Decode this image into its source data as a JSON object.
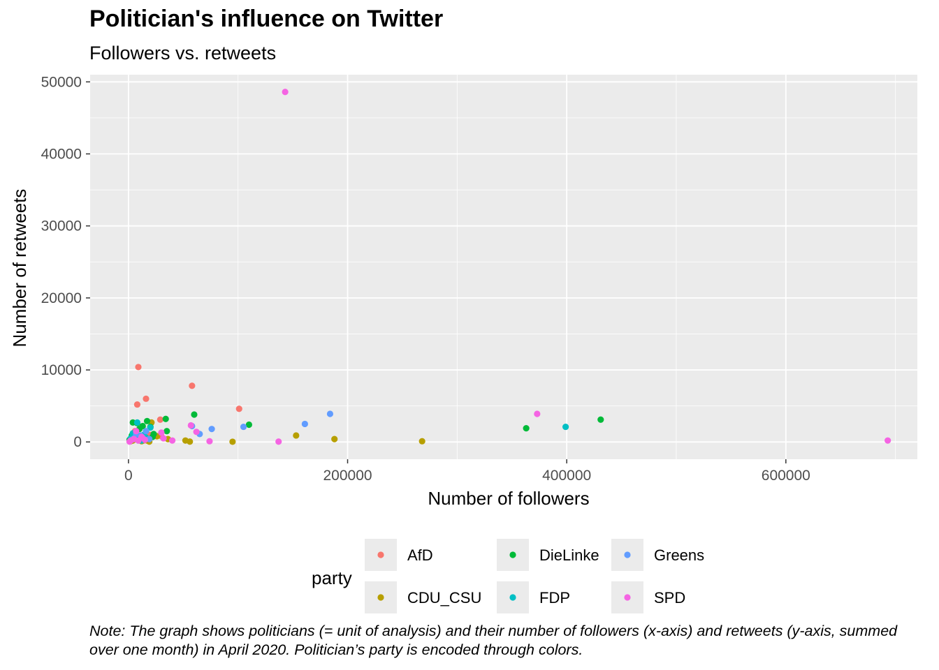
{
  "chart_data": {
    "type": "scatter",
    "title": "Politician's influence on Twitter",
    "subtitle": "Followers vs. retweets",
    "xlabel": "Number of followers",
    "ylabel": "Number of retweets",
    "xlim": [
      -35000,
      720000
    ],
    "ylim": [
      -2400,
      51000
    ],
    "xticks": [
      0,
      200000,
      400000,
      600000
    ],
    "yticks": [
      0,
      10000,
      20000,
      30000,
      40000,
      50000
    ],
    "grid": true,
    "legend": {
      "title": "party",
      "position": "bottom"
    },
    "series": [
      {
        "name": "AfD",
        "color": "#F8766D",
        "points": [
          [
            1000,
            100
          ],
          [
            3000,
            300
          ],
          [
            5000,
            800
          ],
          [
            6000,
            1500
          ],
          [
            8000,
            5200
          ],
          [
            9000,
            10400
          ],
          [
            12000,
            600
          ],
          [
            14000,
            200
          ],
          [
            16000,
            6000
          ],
          [
            19000,
            1000
          ],
          [
            29000,
            3100
          ],
          [
            30000,
            800
          ],
          [
            58000,
            7800
          ],
          [
            101000,
            4600
          ]
        ]
      },
      {
        "name": "CDU_CSU",
        "color": "#B79F00",
        "points": [
          [
            2000,
            100
          ],
          [
            4000,
            200
          ],
          [
            7000,
            400
          ],
          [
            10000,
            300
          ],
          [
            12000,
            100
          ],
          [
            15000,
            500
          ],
          [
            17000,
            200
          ],
          [
            19000,
            50
          ],
          [
            21000,
            2700
          ],
          [
            26000,
            800
          ],
          [
            36000,
            400
          ],
          [
            52000,
            200
          ],
          [
            56000,
            50
          ],
          [
            95000,
            30
          ],
          [
            153000,
            900
          ],
          [
            188000,
            400
          ],
          [
            268000,
            100
          ]
        ]
      },
      {
        "name": "DieLinke",
        "color": "#00BA38",
        "points": [
          [
            1000,
            300
          ],
          [
            3000,
            900
          ],
          [
            4000,
            2700
          ],
          [
            6000,
            1300
          ],
          [
            8000,
            2600
          ],
          [
            10000,
            1800
          ],
          [
            13000,
            2200
          ],
          [
            15000,
            500
          ],
          [
            17000,
            2900
          ],
          [
            20000,
            2100
          ],
          [
            22000,
            700
          ],
          [
            23000,
            1100
          ],
          [
            34000,
            3200
          ],
          [
            35000,
            1500
          ],
          [
            60000,
            3800
          ],
          [
            110000,
            2400
          ],
          [
            363000,
            1900
          ],
          [
            431000,
            3100
          ]
        ]
      },
      {
        "name": "FDP",
        "color": "#00BFC4",
        "points": [
          [
            2000,
            500
          ],
          [
            4000,
            1200
          ],
          [
            6000,
            800
          ],
          [
            8000,
            2700
          ],
          [
            10000,
            300
          ],
          [
            12000,
            200
          ],
          [
            14000,
            1000
          ],
          [
            16000,
            600
          ],
          [
            20000,
            2000
          ],
          [
            399000,
            2100
          ]
        ]
      },
      {
        "name": "Greens",
        "color": "#619CFF",
        "points": [
          [
            3000,
            300
          ],
          [
            5000,
            500
          ],
          [
            7000,
            1100
          ],
          [
            9000,
            200
          ],
          [
            11000,
            900
          ],
          [
            13000,
            600
          ],
          [
            16000,
            1500
          ],
          [
            19000,
            400
          ],
          [
            58000,
            2200
          ],
          [
            65000,
            1100
          ],
          [
            76000,
            1800
          ],
          [
            105000,
            2100
          ],
          [
            161000,
            2500
          ],
          [
            184000,
            3900
          ]
        ]
      },
      {
        "name": "SPD",
        "color": "#F564E3",
        "points": [
          [
            1000,
            50
          ],
          [
            2000,
            200
          ],
          [
            5000,
            400
          ],
          [
            7000,
            1500
          ],
          [
            9000,
            200
          ],
          [
            12000,
            700
          ],
          [
            15000,
            300
          ],
          [
            30000,
            1300
          ],
          [
            32000,
            500
          ],
          [
            40000,
            200
          ],
          [
            57000,
            2300
          ],
          [
            62000,
            1400
          ],
          [
            74000,
            100
          ],
          [
            137000,
            50
          ],
          [
            143000,
            48600
          ],
          [
            373000,
            3900
          ],
          [
            693000,
            200
          ]
        ]
      }
    ]
  },
  "note": "Note: The graph shows politicians (= unit of analysis) and their number of followers (x-axis) and retweets (y-axis, summed over one month) in April 2020. Politician’s party is encoded through colors."
}
